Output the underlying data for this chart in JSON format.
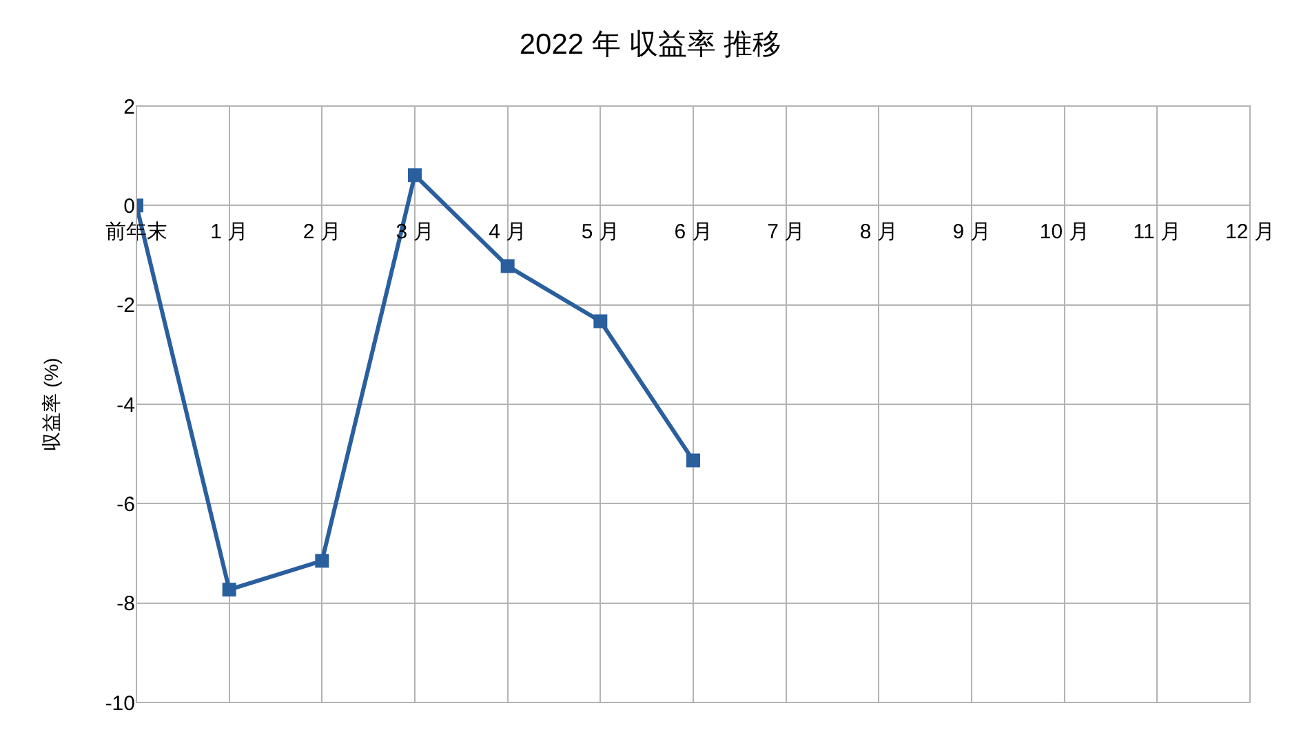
{
  "chart_data": {
    "type": "line",
    "title": "2022 年 収益率 推移",
    "ylabel": "収益率 (%)",
    "categories": [
      "前年末",
      "1 月",
      "2 月",
      "3 月",
      "4 月",
      "5 月",
      "6 月",
      "7 月",
      "8 月",
      "9 月",
      "10 月",
      "11 月",
      "12 月"
    ],
    "series": [
      {
        "color": "#2a5f9e",
        "values": [
          0,
          -7.73,
          -7.15,
          0.61,
          -1.22,
          -2.33,
          -5.13,
          null,
          null,
          null,
          null,
          null,
          null
        ]
      }
    ],
    "ylim": [
      -10,
      2
    ],
    "yticks": [
      -10,
      -8,
      -6,
      -4,
      -2,
      0,
      2
    ],
    "grid": true,
    "legend": false,
    "marker": "square",
    "line_style": "solid"
  }
}
